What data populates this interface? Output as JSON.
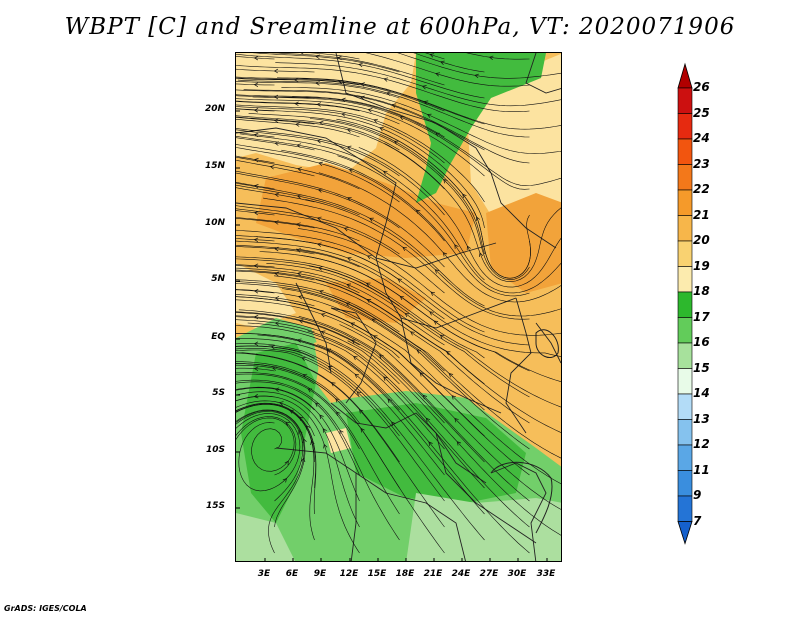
{
  "title": "WBPT [C] and Sreamline at 600hPa, VT: 2020071906",
  "credit": "GrADS: IGES/COLA",
  "map": {
    "lat_labels": [
      "20N",
      "15N",
      "10N",
      "5N",
      "EQ",
      "5S",
      "10S",
      "15S"
    ],
    "lon_labels": [
      "3E",
      "6E",
      "9E",
      "12E",
      "15E",
      "18E",
      "21E",
      "24E",
      "27E",
      "30E",
      "33E"
    ],
    "fields": [
      "wet-bulb potential temperature (shaded)",
      "600hPa streamlines"
    ]
  },
  "colorbar": {
    "labels": [
      "26",
      "25",
      "24",
      "23",
      "22",
      "21",
      "20",
      "19",
      "18",
      "17",
      "16",
      "15",
      "14",
      "13",
      "12",
      "11",
      "9",
      "7"
    ],
    "colors": [
      "#b00000",
      "#cc1010",
      "#e62a10",
      "#f2550f",
      "#f3781a",
      "#f59a2a",
      "#f7b64a",
      "#f9d271",
      "#fcebae",
      "#2db82d",
      "#62cc5a",
      "#a7e19c",
      "#e8fbe8",
      "#b3dcf7",
      "#85c2ee",
      "#5aa7e6",
      "#3a8ede",
      "#2474d6",
      "#1560cc"
    ]
  },
  "palette": {
    "warm_dark": "#f2a33a",
    "warm_mid": "#f6be5a",
    "warm_light": "#fce3a0",
    "green_dark": "#42bb3e",
    "green_mid": "#72cf6a",
    "green_light": "#acdf9f"
  }
}
